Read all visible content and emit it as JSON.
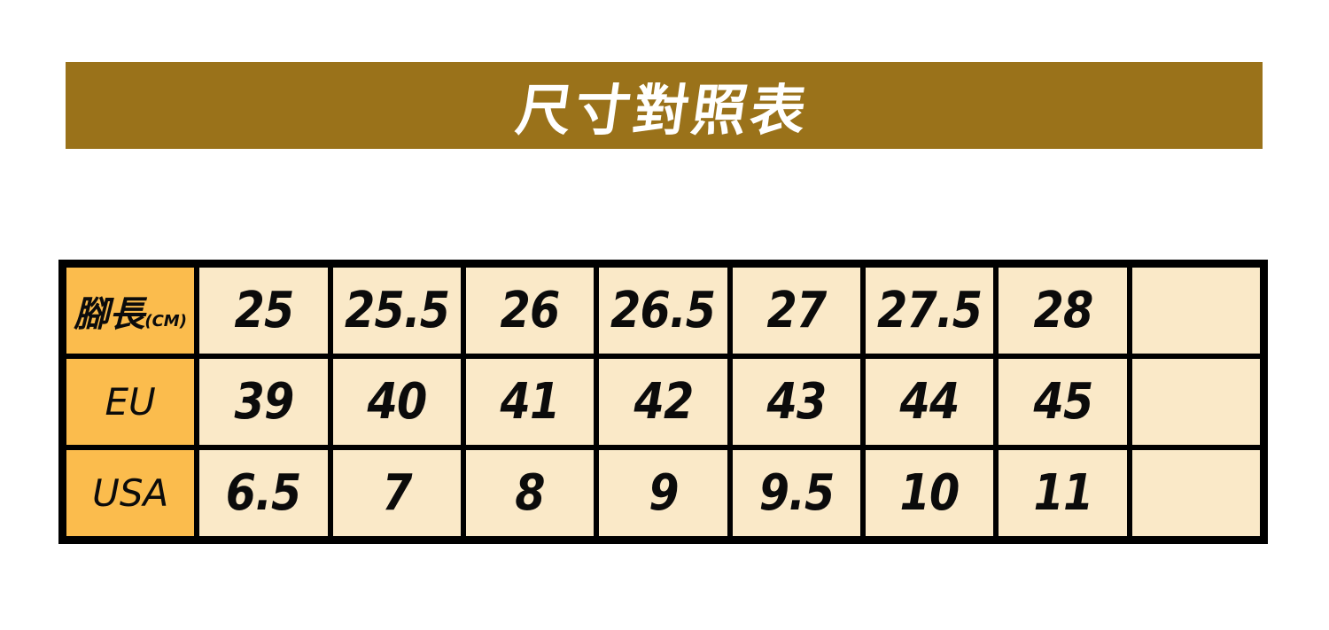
{
  "banner": {
    "title": "尺寸對照表"
  },
  "colors": {
    "banner_bg": "#9A721A",
    "banner_text": "#FFFFFF",
    "header_column_bg": "#FBBC4D",
    "data_cell_bg": "#FAE9C8",
    "border": "#000000",
    "table_text": "#0B0B0B"
  },
  "table": {
    "rows": [
      {
        "label": "腳長",
        "label_suffix": "(CM)",
        "values": [
          "25",
          "25.5",
          "26",
          "26.5",
          "27",
          "27.5",
          "28",
          ""
        ]
      },
      {
        "label": "EU",
        "label_suffix": "",
        "values": [
          "39",
          "40",
          "41",
          "42",
          "43",
          "44",
          "45",
          ""
        ]
      },
      {
        "label": "USA",
        "label_suffix": "",
        "values": [
          "6.5",
          "7",
          "8",
          "9",
          "9.5",
          "10",
          "11",
          ""
        ]
      }
    ]
  },
  "chart_data": {
    "type": "table",
    "title": "尺寸對照表",
    "row_headers": [
      "腳長(CM)",
      "EU",
      "USA"
    ],
    "columns_note": "7 data columns plus one empty trailing column",
    "rows": [
      [
        25,
        25.5,
        26,
        26.5,
        27,
        27.5,
        28
      ],
      [
        39,
        40,
        41,
        42,
        43,
        44,
        45
      ],
      [
        6.5,
        7,
        8,
        9,
        9.5,
        10,
        11
      ]
    ]
  }
}
